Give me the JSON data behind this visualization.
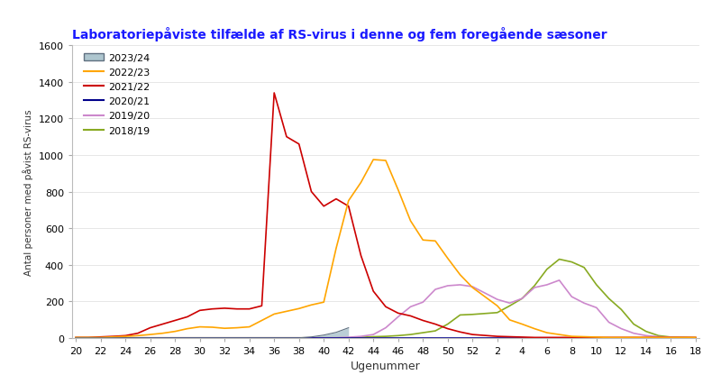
{
  "title": "Laboratoriepåviste tilfælde af RS-virus i denne og fem foregående sæsoner",
  "xlabel": "Ugenummer",
  "ylabel": "Antal personer med påvist RS-virus",
  "ylim": [
    0,
    1600
  ],
  "yticks": [
    0,
    200,
    400,
    600,
    800,
    1000,
    1200,
    1400,
    1600
  ],
  "x_labels": [
    "20",
    "22",
    "24",
    "26",
    "28",
    "30",
    "32",
    "34",
    "36",
    "38",
    "40",
    "42",
    "44",
    "46",
    "48",
    "50",
    "52",
    "2",
    "4",
    "6",
    "8",
    "10",
    "12",
    "14",
    "16",
    "18"
  ],
  "seasons": {
    "2023/24": {
      "color": "#aec6cf",
      "filled": true,
      "linecolor": "#607080",
      "weeks": [
        20,
        21,
        22,
        23,
        24,
        25,
        26,
        27,
        28,
        29,
        30,
        31,
        32,
        33,
        34,
        35,
        36,
        37,
        38,
        39,
        40,
        41,
        42
      ],
      "values": [
        0,
        0,
        0,
        0,
        0,
        0,
        0,
        0,
        0,
        0,
        0,
        0,
        0,
        0,
        0,
        0,
        0,
        0,
        0,
        5,
        15,
        30,
        55
      ]
    },
    "2022/23": {
      "color": "#FFA500",
      "weeks": [
        20,
        21,
        22,
        23,
        24,
        25,
        26,
        27,
        28,
        29,
        30,
        31,
        32,
        33,
        34,
        35,
        36,
        37,
        38,
        39,
        40,
        41,
        42,
        43,
        44,
        45,
        46,
        47,
        48,
        49,
        50,
        51,
        52,
        2,
        3,
        4,
        5,
        6,
        7,
        8,
        9,
        10,
        11,
        12,
        13,
        14,
        15,
        16,
        17,
        18
      ],
      "values": [
        2,
        2,
        2,
        5,
        8,
        12,
        18,
        25,
        35,
        50,
        60,
        58,
        52,
        55,
        60,
        95,
        130,
        145,
        160,
        180,
        195,
        490,
        750,
        850,
        975,
        970,
        810,
        640,
        535,
        530,
        435,
        345,
        275,
        175,
        98,
        75,
        50,
        28,
        18,
        8,
        6,
        4,
        2,
        2,
        2,
        2,
        2,
        2,
        2,
        2
      ]
    },
    "2021/22": {
      "color": "#CC0000",
      "weeks": [
        20,
        21,
        22,
        23,
        24,
        25,
        26,
        27,
        28,
        29,
        30,
        31,
        32,
        33,
        34,
        35,
        36,
        37,
        38,
        39,
        40,
        41,
        42,
        43,
        44,
        45,
        46,
        47,
        48,
        49,
        50,
        51,
        52,
        2,
        3,
        4,
        5,
        6,
        7,
        8,
        9,
        10,
        11,
        12,
        13,
        14,
        15,
        16,
        17,
        18
      ],
      "values": [
        2,
        2,
        5,
        8,
        12,
        25,
        55,
        75,
        95,
        115,
        150,
        158,
        162,
        158,
        158,
        175,
        1340,
        1100,
        1060,
        800,
        720,
        760,
        720,
        450,
        255,
        170,
        135,
        120,
        95,
        75,
        50,
        32,
        18,
        8,
        6,
        4,
        2,
        2,
        2,
        2,
        2,
        2,
        2,
        2,
        2,
        2,
        2,
        2,
        2,
        2
      ]
    },
    "2020/21": {
      "color": "#00008B",
      "weeks": [
        20,
        21,
        22,
        23,
        24,
        25,
        26,
        27,
        28,
        29,
        30,
        31,
        32,
        33,
        34,
        35,
        36,
        37,
        38,
        39,
        40,
        41,
        42,
        43,
        44,
        45,
        46,
        47,
        48,
        49,
        50,
        51,
        52,
        2,
        3,
        4,
        5,
        6,
        7,
        8,
        9,
        10,
        11,
        12,
        13,
        14,
        15,
        16,
        17,
        18
      ],
      "values": [
        0,
        0,
        0,
        0,
        0,
        0,
        0,
        0,
        0,
        0,
        0,
        0,
        0,
        0,
        0,
        0,
        0,
        0,
        0,
        0,
        0,
        0,
        0,
        0,
        0,
        0,
        0,
        0,
        0,
        0,
        0,
        0,
        0,
        0,
        0,
        0,
        0,
        0,
        0,
        0,
        0,
        0,
        0,
        0,
        0,
        0,
        0,
        0,
        0,
        0
      ]
    },
    "2019/20": {
      "color": "#CC88CC",
      "weeks": [
        20,
        21,
        22,
        23,
        24,
        25,
        26,
        27,
        28,
        29,
        30,
        31,
        32,
        33,
        34,
        35,
        36,
        37,
        38,
        39,
        40,
        41,
        42,
        43,
        44,
        45,
        46,
        47,
        48,
        49,
        50,
        51,
        52,
        2,
        3,
        4,
        5,
        6,
        7,
        8,
        9,
        10,
        11,
        12,
        13,
        14,
        15,
        16,
        17,
        18
      ],
      "values": [
        0,
        0,
        0,
        0,
        0,
        0,
        0,
        0,
        0,
        0,
        0,
        0,
        0,
        0,
        0,
        0,
        0,
        0,
        0,
        0,
        0,
        0,
        3,
        8,
        18,
        55,
        115,
        170,
        195,
        265,
        285,
        290,
        280,
        210,
        190,
        215,
        275,
        290,
        315,
        225,
        190,
        165,
        85,
        50,
        25,
        12,
        6,
        3,
        2,
        0
      ]
    },
    "2018/19": {
      "color": "#88AA22",
      "weeks": [
        20,
        21,
        22,
        23,
        24,
        25,
        26,
        27,
        28,
        29,
        30,
        31,
        32,
        33,
        34,
        35,
        36,
        37,
        38,
        39,
        40,
        41,
        42,
        43,
        44,
        45,
        46,
        47,
        48,
        49,
        50,
        51,
        52,
        2,
        3,
        4,
        5,
        6,
        7,
        8,
        9,
        10,
        11,
        12,
        13,
        14,
        15,
        16,
        17,
        18
      ],
      "values": [
        0,
        0,
        0,
        0,
        0,
        0,
        0,
        0,
        0,
        0,
        0,
        0,
        0,
        0,
        0,
        0,
        0,
        0,
        0,
        0,
        0,
        0,
        0,
        3,
        6,
        8,
        12,
        18,
        28,
        38,
        75,
        125,
        128,
        138,
        175,
        215,
        285,
        375,
        430,
        415,
        385,
        290,
        215,
        155,
        75,
        35,
        12,
        4,
        2,
        0
      ]
    }
  }
}
